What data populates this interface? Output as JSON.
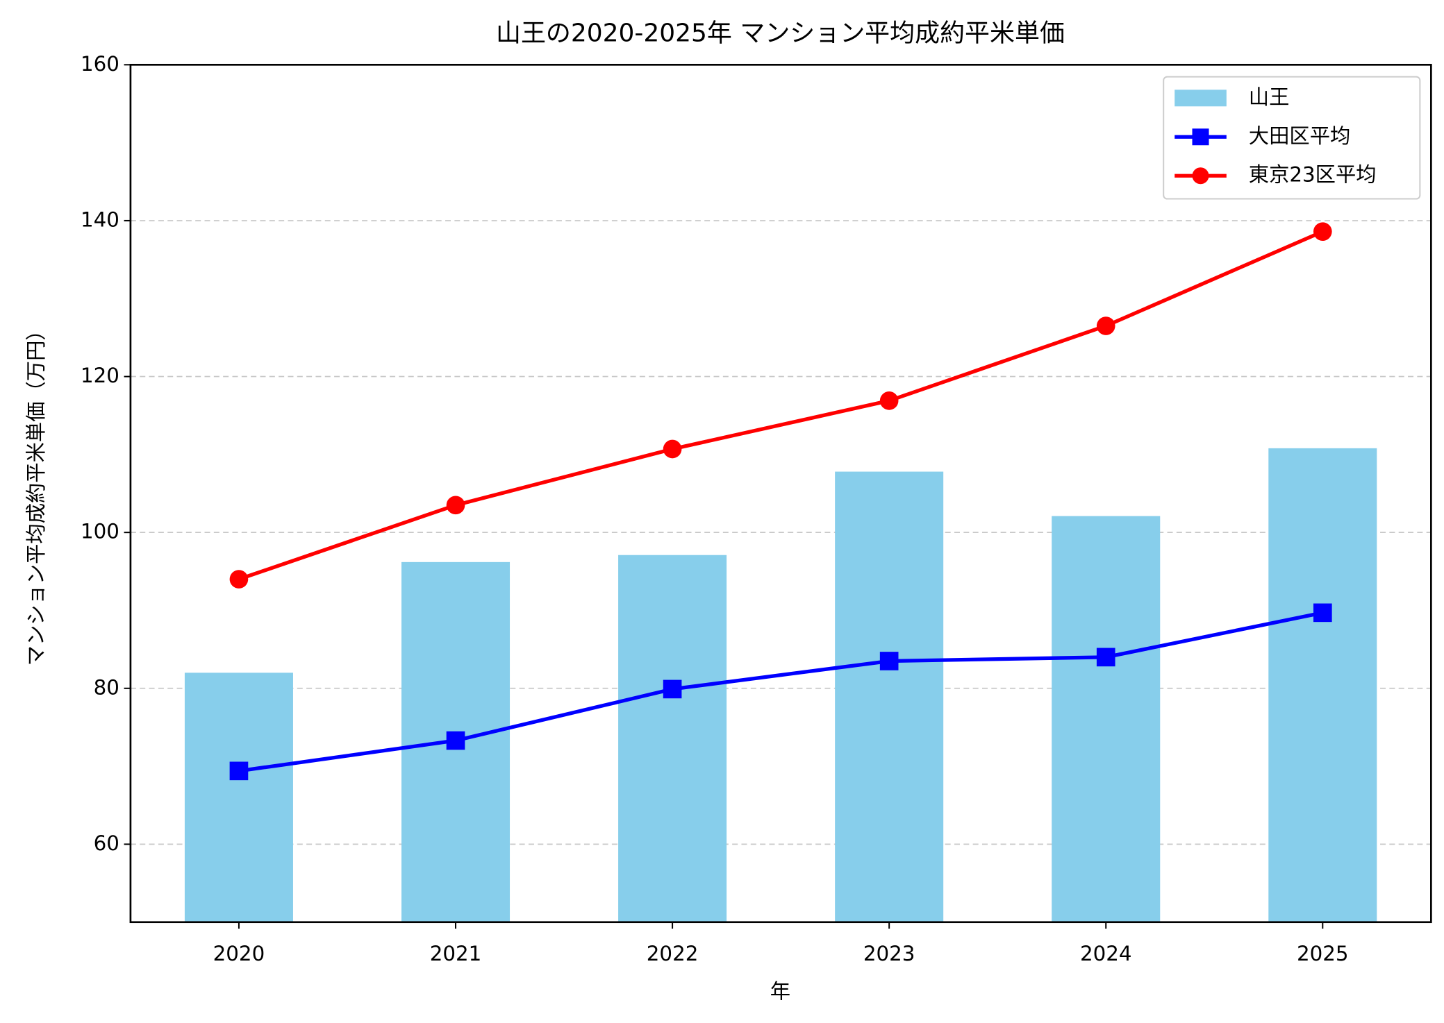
{
  "chart_data": {
    "type": "bar",
    "title": "山王の2020-2025年 マンション平均成約平米単価",
    "xlabel": "年",
    "ylabel": "マンション平均成約平米単価（万円）",
    "categories": [
      "2020",
      "2021",
      "2022",
      "2023",
      "2024",
      "2025"
    ],
    "series": [
      {
        "name": "山王",
        "type": "bar",
        "color": "#87ceeb",
        "values": [
          82.0,
          96.2,
          97.1,
          107.8,
          102.1,
          110.8
        ]
      },
      {
        "name": "大田区平均",
        "type": "line",
        "marker": "square",
        "color": "#0000ff",
        "values": [
          69.4,
          73.3,
          79.9,
          83.5,
          84.0,
          89.7
        ]
      },
      {
        "name": "東京23区平均",
        "type": "line",
        "marker": "circle",
        "color": "#ff0000",
        "values": [
          94.0,
          103.5,
          110.7,
          116.9,
          126.5,
          138.6
        ]
      }
    ],
    "ylim": [
      50,
      160
    ],
    "yticks": [
      60,
      80,
      100,
      120,
      140,
      160
    ],
    "grid": "y",
    "legend": "upper right"
  }
}
